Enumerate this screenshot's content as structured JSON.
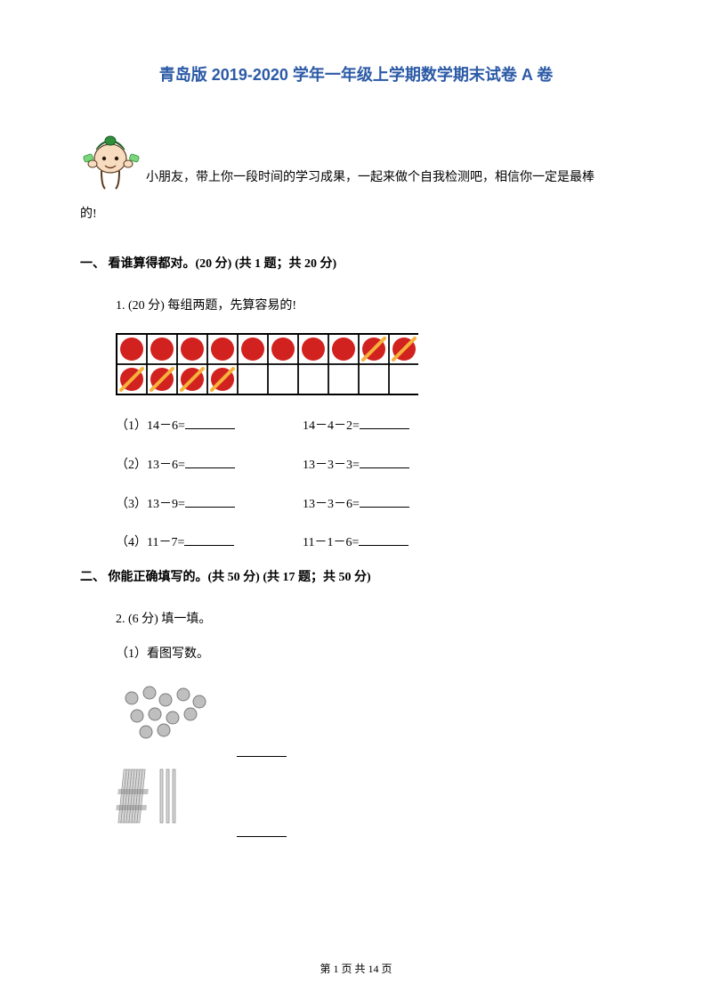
{
  "title": "青岛版 2019-2020 学年一年级上学期数学期末试卷 A 卷",
  "intro_part1": "小朋友，带上你一段时间的学习成果，一起来做个自我检测吧，相信你一定是最棒",
  "intro_part2": "的!",
  "section1": {
    "heading": "一、 看谁算得都对。(20 分)  (共 1 题；共 20 分)",
    "q1_label": "1.  (20 分) 每组两题，先算容易的!",
    "counters": {
      "cols": 10,
      "row1_filled": 10,
      "row1_slashed_from": 8,
      "row2_filled": 4,
      "row2_slashed_from": 0,
      "circle_fill": "#d2221f",
      "slash": "#f7b23b",
      "border": "#000000",
      "bg": "#ffffff"
    },
    "rows": [
      {
        "left_label": "（1）14－6=",
        "right_label": "14－4－2="
      },
      {
        "left_label": "（2）13－6=",
        "right_label": "13－3－3="
      },
      {
        "left_label": "（3）13－9=",
        "right_label": "13－3－6="
      },
      {
        "left_label": "（4）11－7=",
        "right_label": "11－1－6="
      }
    ]
  },
  "section2": {
    "heading": "二、 你能正确填写的。(共 50 分)  (共 17 题；共 50 分)",
    "q2_label": "2.  (6 分) 填一填。",
    "q2_sub1": "（1）看图写数。",
    "dots": {
      "count": 11,
      "fill": "#bfbfbf",
      "stroke": "#7a7a7a",
      "positions": [
        [
          18,
          18
        ],
        [
          38,
          12
        ],
        [
          56,
          20
        ],
        [
          76,
          14
        ],
        [
          94,
          22
        ],
        [
          24,
          38
        ],
        [
          44,
          36
        ],
        [
          64,
          40
        ],
        [
          84,
          36
        ],
        [
          34,
          56
        ],
        [
          54,
          54
        ]
      ],
      "r": 7
    },
    "sticks": {
      "bundle_fill": "#d6d6d6",
      "bundle_stroke": "#888888",
      "loose_count": 3
    }
  },
  "footer": {
    "prefix": "第 ",
    "page": "1",
    "mid": " 页 共 ",
    "total": "14",
    "suffix": " 页"
  }
}
